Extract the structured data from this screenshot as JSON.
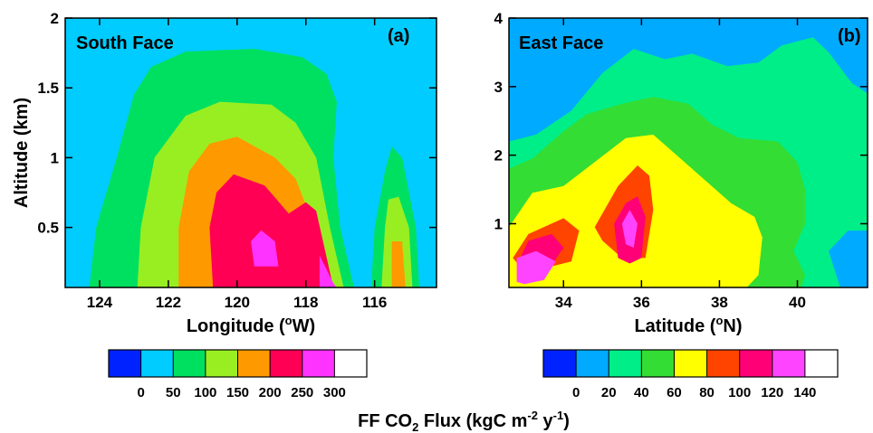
{
  "chart_data": [
    {
      "type": "heatmap",
      "panel_label": "(a)",
      "face_label": "South Face",
      "xlabel": "Longitude (°W)",
      "ylabel": "Altitude (km)",
      "xlim": [
        125.0,
        114.2
      ],
      "ylim": [
        0.07,
        2.0
      ],
      "x_ticks": [
        124,
        122,
        120,
        118,
        116
      ],
      "x_tick_labels": [
        "124",
        "122",
        "120",
        "118",
        "116"
      ],
      "y_ticks": [
        0.5,
        1.0,
        1.5,
        2.0
      ],
      "y_tick_labels": [
        "0.5",
        "1",
        "1.5",
        "2"
      ],
      "background_color": "#00ccff",
      "levels": [
        {
          "threshold": 50,
          "color": "#00e060",
          "polygons": [
            [
              [
                124.3,
                0.07
              ],
              [
                124.1,
                0.5
              ],
              [
                123.5,
                1.0
              ],
              [
                123.0,
                1.45
              ],
              [
                122.5,
                1.65
              ],
              [
                121.5,
                1.76
              ],
              [
                119.5,
                1.78
              ],
              [
                118.1,
                1.72
              ],
              [
                117.4,
                1.6
              ],
              [
                117.1,
                1.4
              ],
              [
                117.2,
                1.0
              ],
              [
                117.0,
                0.5
              ],
              [
                116.6,
                0.07
              ]
            ],
            [
              [
                116.1,
                0.07
              ],
              [
                116.0,
                0.5
              ],
              [
                115.7,
                0.9
              ],
              [
                115.5,
                1.08
              ],
              [
                115.2,
                1.0
              ],
              [
                114.8,
                0.5
              ],
              [
                114.7,
                0.07
              ]
            ]
          ]
        },
        {
          "threshold": 100,
          "color": "#99ee22",
          "polygons": [
            [
              [
                122.9,
                0.07
              ],
              [
                122.8,
                0.5
              ],
              [
                122.4,
                1.0
              ],
              [
                121.5,
                1.3
              ],
              [
                120.5,
                1.4
              ],
              [
                119.0,
                1.38
              ],
              [
                118.3,
                1.25
              ],
              [
                117.7,
                1.0
              ],
              [
                117.3,
                0.5
              ],
              [
                116.9,
                0.07
              ]
            ],
            [
              [
                115.8,
                0.07
              ],
              [
                115.7,
                0.5
              ],
              [
                115.6,
                0.7
              ],
              [
                115.3,
                0.72
              ],
              [
                115.0,
                0.5
              ],
              [
                114.9,
                0.07
              ]
            ]
          ]
        },
        {
          "threshold": 150,
          "color": "#ff9900",
          "polygons": [
            [
              [
                121.7,
                0.07
              ],
              [
                121.7,
                0.5
              ],
              [
                121.4,
                0.9
              ],
              [
                120.8,
                1.1
              ],
              [
                120.0,
                1.15
              ],
              [
                118.9,
                1.0
              ],
              [
                118.3,
                0.85
              ],
              [
                117.9,
                0.6
              ],
              [
                117.6,
                0.4
              ],
              [
                117.4,
                0.07
              ]
            ],
            [
              [
                115.5,
                0.07
              ],
              [
                115.5,
                0.4
              ],
              [
                115.2,
                0.4
              ],
              [
                115.1,
                0.07
              ]
            ]
          ]
        },
        {
          "threshold": 200,
          "color": "#ff0055",
          "polygons": [
            [
              [
                120.7,
                0.07
              ],
              [
                120.8,
                0.5
              ],
              [
                120.6,
                0.75
              ],
              [
                120.1,
                0.88
              ],
              [
                119.2,
                0.8
              ],
              [
                118.5,
                0.6
              ],
              [
                118.0,
                0.68
              ],
              [
                117.7,
                0.62
              ],
              [
                117.5,
                0.4
              ],
              [
                117.2,
                0.07
              ]
            ]
          ]
        },
        {
          "threshold": 250,
          "color": "#ff33ff",
          "polygons": [
            [
              [
                119.5,
                0.22
              ],
              [
                119.6,
                0.4
              ],
              [
                119.3,
                0.48
              ],
              [
                118.9,
                0.4
              ],
              [
                118.8,
                0.22
              ]
            ],
            [
              [
                117.6,
                0.07
              ],
              [
                117.6,
                0.3
              ],
              [
                117.2,
                0.1
              ],
              [
                117.1,
                0.07
              ]
            ]
          ]
        }
      ],
      "colorbar": {
        "boundaries": [
          "0",
          "50",
          "100",
          "150",
          "200",
          "250",
          "300"
        ],
        "colors": [
          "#0022ff",
          "#00ccff",
          "#00e060",
          "#99ee22",
          "#ff9900",
          "#ff0055",
          "#ff33ff",
          "#ffffff"
        ]
      }
    },
    {
      "type": "heatmap",
      "panel_label": "(b)",
      "face_label": "East Face",
      "xlabel": "Latitude (°N)",
      "ylabel": "",
      "xlim": [
        32.6,
        41.8
      ],
      "ylim": [
        0.07,
        4.0
      ],
      "x_ticks": [
        34,
        36,
        38,
        40
      ],
      "x_tick_labels": [
        "34",
        "36",
        "38",
        "40"
      ],
      "y_ticks": [
        1,
        2,
        3,
        4
      ],
      "y_tick_labels": [
        "1",
        "2",
        "3",
        "4"
      ],
      "background_color": "#00aaff",
      "levels": [
        {
          "threshold": 20,
          "color": "#00ee88",
          "polygons": [
            [
              [
                32.6,
                0.07
              ],
              [
                32.6,
                2.2
              ],
              [
                33.3,
                2.3
              ],
              [
                34.2,
                2.65
              ],
              [
                35.0,
                3.2
              ],
              [
                35.8,
                3.55
              ],
              [
                36.6,
                3.4
              ],
              [
                37.3,
                3.48
              ],
              [
                38.2,
                3.3
              ],
              [
                39.0,
                3.35
              ],
              [
                39.6,
                3.6
              ],
              [
                40.4,
                3.72
              ],
              [
                40.8,
                3.5
              ],
              [
                41.4,
                3.05
              ],
              [
                41.8,
                2.9
              ],
              [
                41.8,
                0.9
              ],
              [
                41.3,
                0.9
              ],
              [
                40.8,
                0.6
              ],
              [
                41.1,
                0.07
              ]
            ]
          ]
        },
        {
          "threshold": 40,
          "color": "#33dd33",
          "polygons": [
            [
              [
                32.6,
                0.07
              ],
              [
                32.6,
                1.8
              ],
              [
                33.2,
                1.95
              ],
              [
                34.0,
                2.35
              ],
              [
                34.6,
                2.6
              ],
              [
                35.5,
                2.75
              ],
              [
                36.3,
                2.85
              ],
              [
                37.2,
                2.75
              ],
              [
                37.8,
                2.45
              ],
              [
                38.5,
                2.25
              ],
              [
                39.5,
                2.2
              ],
              [
                40.0,
                1.9
              ],
              [
                40.2,
                1.5
              ],
              [
                40.2,
                1.0
              ],
              [
                39.9,
                0.6
              ],
              [
                40.2,
                0.25
              ],
              [
                40.1,
                0.07
              ]
            ]
          ]
        },
        {
          "threshold": 60,
          "color": "#ffff00",
          "polygons": [
            [
              [
                32.6,
                0.07
              ],
              [
                32.6,
                0.95
              ],
              [
                33.2,
                1.45
              ],
              [
                34.0,
                1.55
              ],
              [
                34.8,
                1.9
              ],
              [
                35.6,
                2.25
              ],
              [
                36.3,
                2.3
              ],
              [
                37.0,
                1.95
              ],
              [
                37.8,
                1.55
              ],
              [
                38.3,
                1.3
              ],
              [
                38.9,
                1.1
              ],
              [
                39.1,
                0.8
              ],
              [
                39.0,
                0.25
              ],
              [
                38.7,
                0.07
              ]
            ]
          ]
        },
        {
          "threshold": 80,
          "color": "#ff4400",
          "polygons": [
            [
              [
                32.7,
                0.5
              ],
              [
                33.1,
                0.85
              ],
              [
                34.0,
                1.08
              ],
              [
                34.4,
                0.9
              ],
              [
                34.2,
                0.45
              ],
              [
                33.5,
                0.35
              ],
              [
                33.0,
                0.3
              ]
            ],
            [
              [
                34.8,
                0.95
              ],
              [
                35.4,
                1.55
              ],
              [
                35.9,
                1.85
              ],
              [
                36.2,
                1.7
              ],
              [
                36.3,
                1.2
              ],
              [
                36.1,
                0.5
              ],
              [
                35.5,
                0.5
              ],
              [
                35.0,
                0.75
              ]
            ]
          ]
        },
        {
          "threshold": 100,
          "color": "#ff0077",
          "polygons": [
            [
              [
                32.8,
                0.4
              ],
              [
                33.1,
                0.75
              ],
              [
                33.7,
                0.85
              ],
              [
                34.0,
                0.65
              ],
              [
                33.7,
                0.4
              ],
              [
                33.0,
                0.3
              ]
            ],
            [
              [
                35.4,
                0.5
              ],
              [
                35.3,
                1.0
              ],
              [
                35.6,
                1.3
              ],
              [
                35.9,
                1.4
              ],
              [
                36.1,
                1.1
              ],
              [
                36.0,
                0.5
              ],
              [
                35.7,
                0.42
              ]
            ]
          ]
        },
        {
          "threshold": 120,
          "color": "#ff44ff",
          "polygons": [
            [
              [
                32.8,
                0.15
              ],
              [
                32.8,
                0.5
              ],
              [
                33.3,
                0.6
              ],
              [
                33.8,
                0.45
              ],
              [
                33.5,
                0.18
              ],
              [
                33.0,
                0.12
              ]
            ],
            [
              [
                35.6,
                0.7
              ],
              [
                35.5,
                1.0
              ],
              [
                35.7,
                1.2
              ],
              [
                35.9,
                1.0
              ],
              [
                35.8,
                0.65
              ]
            ]
          ]
        }
      ],
      "colorbar": {
        "boundaries": [
          "0",
          "20",
          "40",
          "60",
          "80",
          "100",
          "120",
          "140"
        ],
        "colors": [
          "#0022ff",
          "#00aaff",
          "#00ee88",
          "#33dd33",
          "#ffff00",
          "#ff4400",
          "#ff0077",
          "#ff44ff",
          "#ffffff"
        ]
      }
    }
  ],
  "footer": {
    "label_pre": "FF CO",
    "label_sub": "2",
    "label_post": " Flux (kgC m",
    "exp1": "-2",
    "label_mid": " y",
    "exp2": "-1",
    "label_end": ")"
  }
}
